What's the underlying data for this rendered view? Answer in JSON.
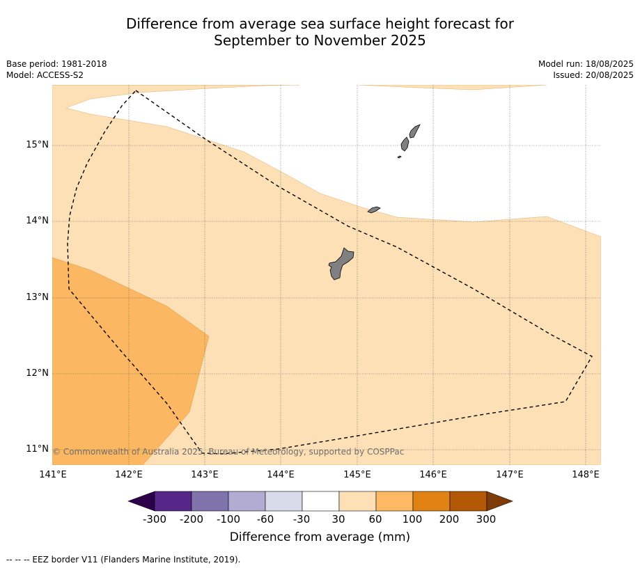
{
  "title": {
    "line1": "Difference from average sea surface height forecast for",
    "line2": "September to November 2025"
  },
  "meta": {
    "base_period": "Base period: 1981-2018",
    "model": "Model: ACCESS-S2",
    "model_run": "Model run: 18/08/2025",
    "issued": "Issued: 20/08/2025"
  },
  "map": {
    "lat_labels": [
      "15°N",
      "14°N",
      "13°N",
      "12°N",
      "11°N"
    ],
    "lon_labels": [
      "141°E",
      "142°E",
      "143°E",
      "144°E",
      "145°E",
      "146°E",
      "147°E",
      "148°E"
    ],
    "copyright": "© Commonwealth of Australia 2025, Bureau of Meteorology, supported by COSPPac",
    "colors": {
      "band_30_60": "#fde0b6",
      "band_60_100": "#fbb761",
      "land": "#808080",
      "eez_line": "#000000"
    }
  },
  "colorbar": {
    "title": "Difference from average (mm)",
    "labels": [
      "-300",
      "-200",
      "-100",
      "-60",
      "-30",
      "30",
      "60",
      "100",
      "200",
      "300"
    ],
    "colors": [
      "#2d004b",
      "#542788",
      "#8073ac",
      "#b2abd2",
      "#d8daeb",
      "#ffffff",
      "#fee0b6",
      "#fdb863",
      "#e08214",
      "#b35806",
      "#7f3b08"
    ]
  },
  "footer": "--  --  -- EEZ border V11 (Flanders Marine Institute, 2019)."
}
